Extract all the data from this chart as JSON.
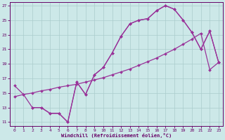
{
  "xlabel": "Windchill (Refroidissement éolien,°C)",
  "bg_color": "#cce8e8",
  "grid_color": "#aacccc",
  "line_color": "#993399",
  "xlim": [
    -0.5,
    23.5
  ],
  "ylim": [
    10.5,
    27.5
  ],
  "xticks": [
    0,
    1,
    2,
    3,
    4,
    5,
    6,
    7,
    8,
    9,
    10,
    11,
    12,
    13,
    14,
    15,
    16,
    17,
    18,
    19,
    20,
    21,
    22,
    23
  ],
  "yticks": [
    11,
    13,
    15,
    17,
    19,
    21,
    23,
    25,
    27
  ],
  "curve1_x": [
    0,
    1,
    2,
    3,
    4,
    5,
    6,
    7,
    8,
    9,
    10,
    11,
    12,
    13,
    14,
    15,
    16,
    17,
    18,
    19,
    20,
    21,
    22,
    23
  ],
  "curve1_y": [
    16.0,
    14.8,
    13.0,
    13.0,
    12.2,
    12.2,
    11.0,
    16.5,
    14.8,
    17.5,
    18.5,
    20.5,
    22.8,
    24.5,
    25.0,
    25.2,
    26.3,
    27.0,
    26.5,
    25.0,
    23.3,
    21.0,
    23.5,
    19.2
  ],
  "curve2_x": [
    0,
    1,
    2,
    3,
    4,
    5,
    6,
    7,
    8,
    9,
    10,
    11,
    12,
    13,
    14,
    15,
    16,
    17,
    18,
    19,
    20,
    21,
    22,
    23
  ],
  "curve2_y": [
    14.5,
    14.8,
    15.0,
    15.3,
    15.5,
    15.8,
    16.0,
    16.2,
    16.5,
    16.8,
    17.1,
    17.5,
    17.9,
    18.3,
    18.8,
    19.3,
    19.8,
    20.4,
    21.0,
    21.7,
    22.4,
    23.2,
    18.2,
    19.2
  ],
  "curve3_x": [
    2,
    3,
    4,
    5,
    6,
    7,
    8,
    9,
    10,
    11,
    12,
    13,
    14,
    15,
    16,
    17,
    18,
    19,
    20,
    21,
    22,
    23
  ],
  "curve3_y": [
    13.0,
    13.0,
    12.2,
    12.2,
    11.0,
    16.5,
    14.8,
    17.5,
    18.5,
    20.5,
    22.8,
    24.5,
    25.0,
    25.2,
    26.3,
    27.0,
    26.5,
    25.0,
    23.3,
    21.0,
    23.5,
    19.2
  ]
}
